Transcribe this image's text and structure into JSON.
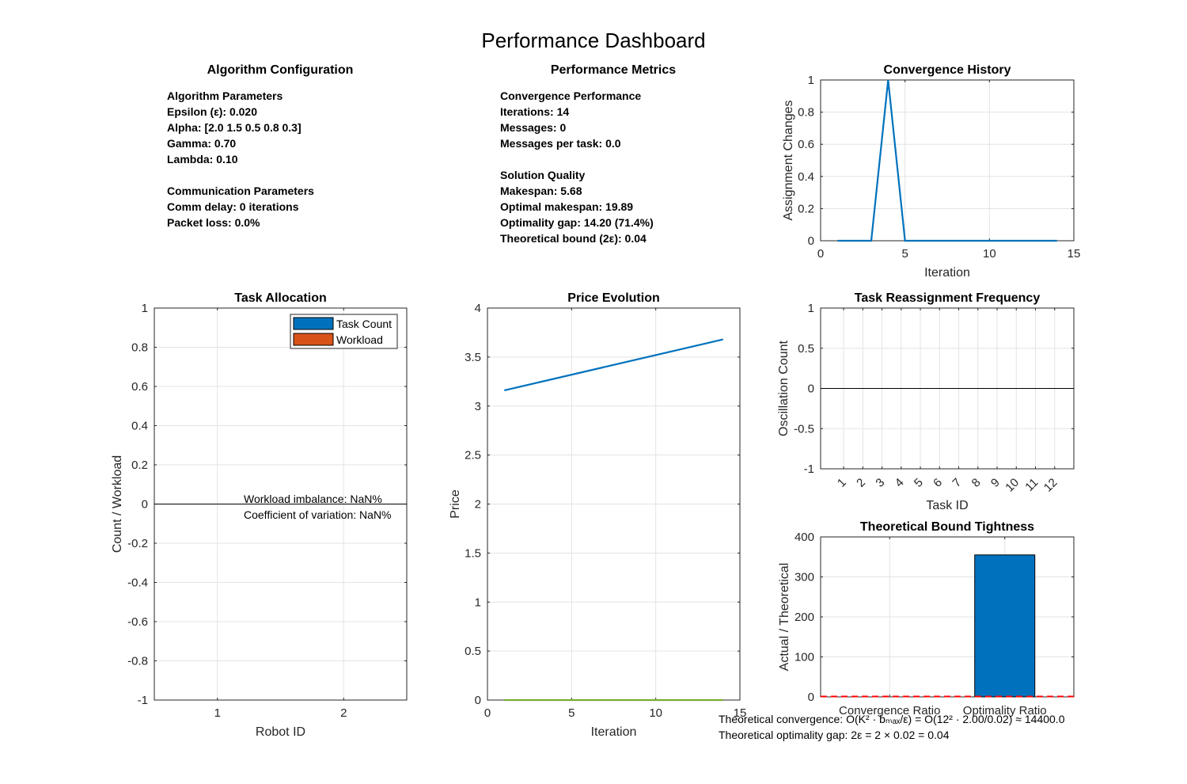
{
  "page": {
    "title": "Performance Dashboard"
  },
  "config": {
    "title": "Algorithm Configuration",
    "lines": [
      "Algorithm Parameters",
      "Epsilon (ε): 0.020",
      "Alpha: [2.0 1.5 0.5 0.8 0.3]",
      "Gamma: 0.70",
      "Lambda: 0.10",
      "",
      "Communication Parameters",
      "Comm delay: 0 iterations",
      "Packet loss: 0.0%"
    ]
  },
  "metrics": {
    "title": "Performance Metrics",
    "lines": [
      "Convergence Performance",
      "Iterations: 14",
      "Messages: 0",
      "Messages per task: 0.0",
      "",
      "Solution Quality",
      "Makespan: 5.68",
      "Optimal makespan: 19.89",
      "Optimality gap: 14.20 (71.4%)",
      "Theoretical bound (2ε): 0.04"
    ]
  },
  "colors": {
    "blue": "#0072BD",
    "orange": "#D95319",
    "green": "#77AC30",
    "red_dashed": "#FF0000",
    "grid": "#E3E3E3",
    "axis": "#262626"
  },
  "chart_data": [
    {
      "id": "convergence",
      "type": "line",
      "title": "Convergence History",
      "xlabel": "Iteration",
      "ylabel": "Assignment Changes",
      "xlim": [
        0,
        15
      ],
      "ylim": [
        0,
        1
      ],
      "xticks": [
        0,
        5,
        10,
        15
      ],
      "yticks": [
        0,
        0.2,
        0.4,
        0.6,
        0.8,
        1
      ],
      "grid": true,
      "series": [
        {
          "x": [
            1,
            2,
            3,
            4,
            5,
            6,
            7,
            8,
            9,
            10,
            11,
            12,
            13,
            14
          ],
          "y": [
            0,
            0,
            0,
            1,
            0,
            0,
            0,
            0,
            0,
            0,
            0,
            0,
            0,
            0
          ]
        }
      ]
    },
    {
      "id": "allocation",
      "type": "bar",
      "title": "Task Allocation",
      "xlabel": "Robot ID",
      "ylabel": "Count / Workload",
      "categories": [
        "1",
        "2"
      ],
      "xlim": [
        0.5,
        2.5
      ],
      "ylim": [
        -1,
        1
      ],
      "yticks": [
        -1,
        -0.8,
        -0.6,
        -0.4,
        -0.2,
        0,
        0.2,
        0.4,
        0.6,
        0.8,
        1
      ],
      "grid": true,
      "legend_position": "top-right",
      "series": [
        {
          "name": "Task Count",
          "values": [
            0,
            0
          ]
        },
        {
          "name": "Workload",
          "values": [
            0,
            0
          ]
        }
      ],
      "annotations": [
        "Workload imbalance: NaN%",
        "Coefficient of variation: NaN%"
      ]
    },
    {
      "id": "price",
      "type": "line",
      "title": "Price Evolution",
      "xlabel": "Iteration",
      "ylabel": "Price",
      "xlim": [
        0,
        15
      ],
      "ylim": [
        0,
        4
      ],
      "xticks": [
        0,
        5,
        10,
        15
      ],
      "yticks": [
        0,
        0.5,
        1,
        1.5,
        2,
        2.5,
        3,
        3.5,
        4
      ],
      "grid": true,
      "series": [
        {
          "x": [
            1,
            14
          ],
          "y": [
            3.16,
            3.68
          ]
        },
        {
          "x": [
            1,
            14
          ],
          "y": [
            0,
            0
          ]
        }
      ]
    },
    {
      "id": "reassign",
      "type": "bar",
      "title": "Task Reassignment Frequency",
      "xlabel": "Task ID",
      "ylabel": "Oscillation Count",
      "categories": [
        "1",
        "2",
        "3",
        "4",
        "5",
        "6",
        "7",
        "8",
        "9",
        "10",
        "11",
        "12"
      ],
      "values": [
        0,
        0,
        0,
        0,
        0,
        0,
        0,
        0,
        0,
        0,
        0,
        0
      ],
      "xlim": [
        -0.2,
        13
      ],
      "ylim": [
        -1,
        1
      ],
      "yticks": [
        -1,
        -0.5,
        0,
        0.5,
        1
      ],
      "grid": true
    },
    {
      "id": "bound",
      "type": "bar",
      "title": "Theoretical Bound Tightness",
      "xlabel": "",
      "ylabel": "Actual / Theoretical",
      "categories": [
        "Convergence Ratio",
        "Optimality Ratio"
      ],
      "values": [
        0,
        355
      ],
      "reference_line": 1,
      "xlim": [
        0.4,
        2.6
      ],
      "ylim": [
        0,
        400
      ],
      "yticks": [
        0,
        100,
        200,
        300,
        400
      ],
      "grid": true,
      "notes": [
        "Theoretical convergence: O(K² · bₘₐₓ/ε) = O(12² · 2.00/0.02) ≈ 14400.0",
        "Theoretical optimality gap: 2ε = 2 × 0.02 = 0.04"
      ]
    }
  ]
}
